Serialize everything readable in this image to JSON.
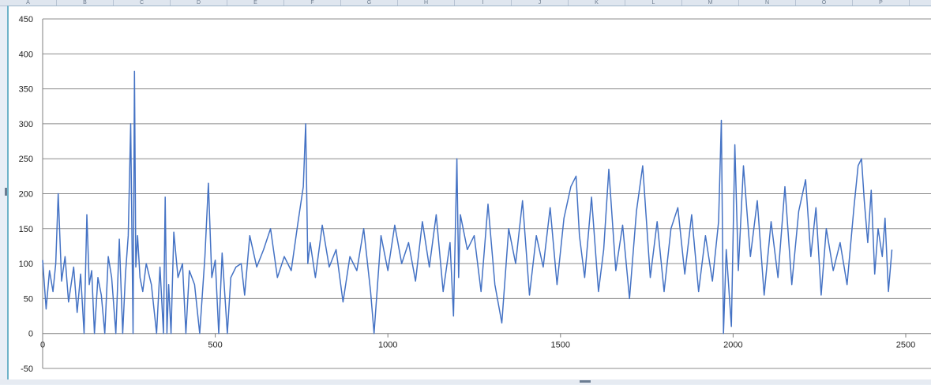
{
  "sheet": {
    "columns": [
      "A",
      "B",
      "C",
      "D",
      "E",
      "F",
      "G",
      "H",
      "I",
      "J",
      "K",
      "L",
      "M",
      "N",
      "O",
      "P"
    ]
  },
  "chart_data": {
    "type": "line",
    "title": "",
    "xlabel": "",
    "ylabel": "",
    "xlim": [
      0,
      2500
    ],
    "ylim": [
      -50,
      450
    ],
    "x_ticks": [
      0,
      500,
      1000,
      1500,
      2000,
      2500
    ],
    "y_ticks": [
      -50,
      0,
      50,
      100,
      150,
      200,
      250,
      300,
      350,
      400,
      450
    ],
    "grid": "horizontal",
    "legend": "none",
    "line_color": "#4472c4",
    "series": [
      {
        "x": [
          0,
          10,
          20,
          30,
          38,
          45,
          55,
          65,
          75,
          90,
          100,
          110,
          120,
          128,
          135,
          142,
          150,
          160,
          170,
          180,
          190,
          200,
          212,
          222,
          232,
          240,
          248,
          255,
          262,
          266,
          270,
          275,
          282,
          290,
          300,
          315,
          330,
          340,
          350,
          355,
          360,
          365,
          372,
          380,
          392,
          405,
          415,
          425,
          440,
          455,
          470,
          480,
          490,
          500,
          510,
          520,
          535,
          545,
          560,
          575,
          585,
          600,
          620,
          640,
          660,
          680,
          700,
          720,
          740,
          755,
          762,
          768,
          775,
          790,
          810,
          830,
          850,
          870,
          890,
          910,
          930,
          950,
          960,
          980,
          1000,
          1020,
          1040,
          1060,
          1080,
          1100,
          1120,
          1140,
          1160,
          1180,
          1190,
          1200,
          1205,
          1210,
          1230,
          1250,
          1270,
          1290,
          1310,
          1330,
          1350,
          1370,
          1390,
          1410,
          1430,
          1450,
          1470,
          1490,
          1510,
          1530,
          1545,
          1555,
          1570,
          1590,
          1610,
          1625,
          1640,
          1660,
          1680,
          1700,
          1720,
          1738,
          1760,
          1780,
          1800,
          1820,
          1840,
          1860,
          1880,
          1900,
          1920,
          1940,
          1958,
          1966,
          1972,
          1980,
          1995,
          2005,
          2015,
          2030,
          2050,
          2070,
          2090,
          2110,
          2130,
          2150,
          2170,
          2190,
          2210,
          2225,
          2240,
          2255,
          2270,
          2290,
          2310,
          2330,
          2350,
          2362,
          2372,
          2380,
          2390,
          2400,
          2410,
          2420,
          2432,
          2440,
          2450,
          2460
        ],
        "y": [
          105,
          35,
          90,
          60,
          100,
          200,
          75,
          110,
          45,
          95,
          30,
          85,
          0,
          170,
          70,
          90,
          0,
          80,
          55,
          0,
          110,
          80,
          0,
          135,
          0,
          85,
          140,
          300,
          0,
          375,
          95,
          140,
          80,
          60,
          100,
          70,
          0,
          95,
          0,
          195,
          0,
          70,
          0,
          145,
          80,
          100,
          0,
          90,
          70,
          0,
          110,
          215,
          80,
          105,
          0,
          115,
          0,
          80,
          95,
          100,
          55,
          140,
          95,
          120,
          150,
          80,
          110,
          90,
          160,
          210,
          300,
          100,
          130,
          80,
          155,
          95,
          120,
          45,
          110,
          90,
          150,
          60,
          0,
          140,
          90,
          155,
          100,
          130,
          75,
          160,
          95,
          170,
          60,
          130,
          25,
          250,
          80,
          170,
          120,
          140,
          60,
          185,
          70,
          15,
          150,
          100,
          190,
          55,
          140,
          95,
          180,
          70,
          165,
          210,
          225,
          140,
          80,
          195,
          60,
          120,
          235,
          90,
          155,
          50,
          175,
          240,
          80,
          160,
          60,
          150,
          180,
          85,
          170,
          60,
          140,
          75,
          160,
          305,
          0,
          120,
          10,
          270,
          90,
          240,
          110,
          190,
          55,
          160,
          80,
          210,
          70,
          175,
          220,
          110,
          180,
          55,
          150,
          90,
          130,
          70,
          180,
          240,
          250,
          190,
          130,
          205,
          85,
          150,
          110,
          165,
          60,
          120
        ]
      }
    ]
  }
}
